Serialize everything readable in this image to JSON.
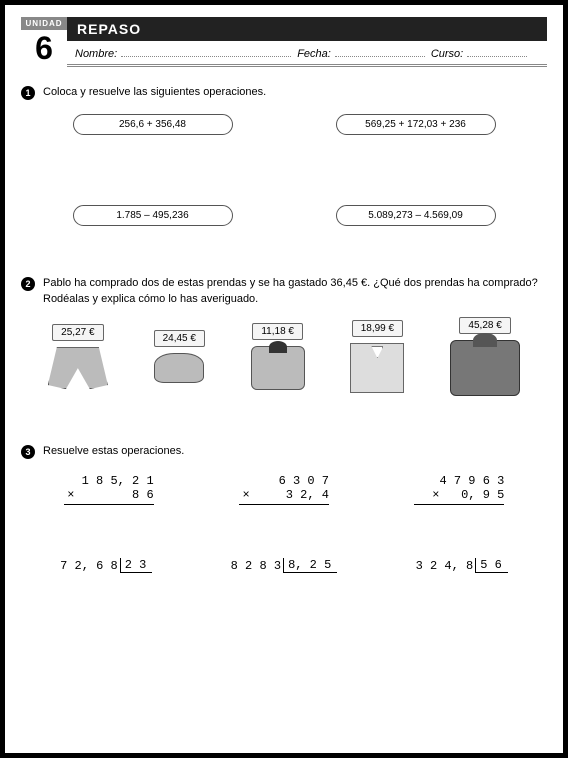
{
  "header": {
    "unit_label": "UNIDAD",
    "unit_number": "6",
    "title": "REPASO",
    "fields": {
      "nombre": "Nombre:",
      "fecha": "Fecha:",
      "curso": "Curso:"
    }
  },
  "q1": {
    "prompt": "Coloca y resuelve las siguientes operaciones.",
    "ops": [
      "256,6 + 356,48",
      "569,25 + 172,03 + 236",
      "1.785 – 495,236",
      "5.089,273 – 4.569,09"
    ]
  },
  "q2": {
    "prompt": "Pablo ha comprado dos de estas prendas y se ha gastado 36,45 €. ¿Qué dos prendas ha comprado? Rodéalas y explica cómo lo has averiguado.",
    "prices": [
      "25,27 €",
      "24,45 €",
      "11,18 €",
      "18,99 €",
      "45,28 €"
    ]
  },
  "q3": {
    "prompt": "Resuelve estas operaciones.",
    "mult": [
      {
        "a": "1 8 5, 2 1",
        "b": "8 6"
      },
      {
        "a": "6 3 0 7",
        "b": "3 2, 4"
      },
      {
        "a": "4 7 9 6 3",
        "b": "0, 9 5"
      }
    ],
    "div": [
      {
        "dividend": "7 2, 6 8",
        "divisor": "2 3"
      },
      {
        "dividend": "8 2 8 3",
        "divisor": "8, 2 5"
      },
      {
        "dividend": "3 2 4, 8",
        "divisor": "5 6"
      }
    ]
  },
  "colors": {
    "header_bg": "#222222",
    "badge_bg": "#888888",
    "border": "#555555"
  }
}
